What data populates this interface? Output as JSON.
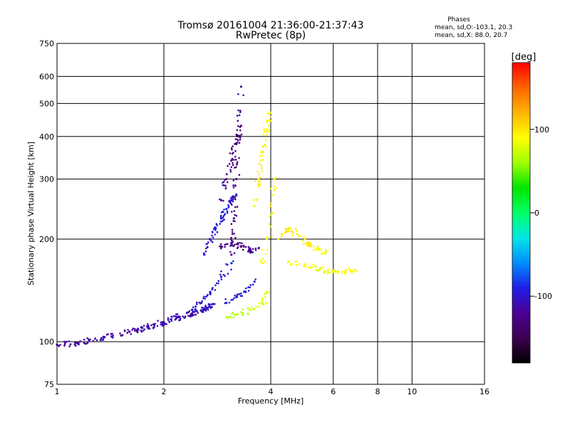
{
  "chart_data": {
    "type": "scatter",
    "title": "Tromsø 20161004 21:36:00-21:37:43",
    "subtitle": "RwPretec (8p)",
    "xlabel": "Frequency [MHz]",
    "ylabel": "Stationary phase Virtual Height [km]",
    "x_scale": "log",
    "y_scale": "log",
    "xlim": [
      1,
      16
    ],
    "ylim": [
      75,
      750
    ],
    "x_ticks": [
      1,
      2,
      4,
      6,
      8,
      10,
      16
    ],
    "x_tick_labels": [
      "1",
      "2",
      "4",
      "6",
      "8",
      "10",
      "16"
    ],
    "y_ticks": [
      75,
      100,
      200,
      300,
      400,
      500,
      600,
      750
    ],
    "y_tick_labels": [
      "75",
      "100",
      "200",
      "300",
      "400",
      "500",
      "600",
      "750"
    ],
    "grid": true,
    "phases_legend": {
      "title": "Phases",
      "line_o": "mean, sd,O:-103.1, 20.3",
      "line_x": "mean, sd,X:  88.0, 20.7"
    },
    "colorbar": {
      "label": "[deg]",
      "range": [
        -180,
        180
      ],
      "tick_values": [
        100,
        0,
        -100
      ],
      "tick_labels": [
        "100",
        "0",
        "-100"
      ],
      "colors": [
        "#000000",
        "#3c0050",
        "#4b0096",
        "#1e1ee6",
        "#008cff",
        "#00e6e6",
        "#00ff64",
        "#00e600",
        "#a0ff00",
        "#ffff00",
        "#ffb400",
        "#ff6400",
        "#ff0000"
      ]
    },
    "series": [
      {
        "segments": [
          {
            "f": [
              1.0,
              1.15,
              1.35,
              1.6,
              1.8,
              2.0,
              2.2,
              2.4,
              2.6,
              2.75
            ],
            "h": [
              98,
              99,
              103,
              107,
              110,
              114,
              118,
              121,
              125,
              129
            ],
            "phase": [
              -115,
              -118,
              -112,
              -120,
              -108,
              -110,
              -106,
              -112,
              -104,
              -100
            ],
            "count": 24
          },
          {
            "f": [
              2.4,
              2.55,
              2.7,
              2.9,
              3.1
            ],
            "h": [
              124,
              130,
              140,
              155,
              170
            ],
            "phase": [
              -95,
              -100,
              -92,
              -98,
              -90
            ],
            "count": 10
          },
          {
            "f": [
              2.6,
              2.7,
              2.8,
              2.9,
              3.0,
              3.1,
              3.2
            ],
            "h": [
              180,
              200,
              215,
              230,
              245,
              260,
              270
            ],
            "phase": [
              -95,
              -100,
              -92,
              -98,
              -90,
              -105,
              -95
            ],
            "count": 10
          },
          {
            "f": [
              2.9,
              3.0,
              3.1,
              3.2,
              3.3
            ],
            "h": [
              260,
              300,
              340,
              380,
              430
            ],
            "phase": [
              -120,
              -130,
              -125,
              -128,
              -122
            ],
            "count": 10
          },
          {
            "f": [
              3.1,
              3.15,
              3.2,
              3.25,
              3.3
            ],
            "h": [
              180,
              230,
              300,
              400,
              560
            ],
            "phase": [
              -125,
              -130,
              -128,
              -135,
              -120
            ],
            "count": 14
          },
          {
            "f": [
              2.9,
              3.1,
              3.3,
              3.5,
              3.7
            ],
            "h": [
              190,
              195,
              190,
              185,
              188
            ],
            "phase": [
              -128,
              -125,
              -130,
              -122,
              -126
            ],
            "count": 12
          },
          {
            "f": [
              3.0,
              3.2,
              3.4,
              3.6
            ],
            "h": [
              130,
              135,
              140,
              150
            ],
            "phase": [
              -95,
              -100,
              -90,
              -98
            ],
            "count": 8
          }
        ]
      },
      {
        "segments": [
          {
            "f": [
              3.0,
              3.2,
              3.5,
              3.8,
              3.9
            ],
            "h": [
              118,
              120,
              124,
              130,
              140
            ],
            "phase": [
              70,
              65,
              75,
              80,
              78
            ],
            "count": 10
          },
          {
            "f": [
              3.6,
              3.7,
              3.8,
              3.9,
              4.0
            ],
            "h": [
              250,
              300,
              360,
              420,
              470
            ],
            "phase": [
              85,
              95,
              100,
              90,
              92
            ],
            "count": 12
          },
          {
            "f": [
              3.8,
              3.9,
              4.0,
              4.1
            ],
            "h": [
              170,
              200,
              250,
              300
            ],
            "phase": [
              90,
              85,
              95,
              88
            ],
            "count": 8
          },
          {
            "f": [
              4.2,
              4.5,
              4.8,
              5.1,
              5.4,
              5.7
            ],
            "h": [
              200,
              215,
              205,
              195,
              188,
              182
            ],
            "phase": [
              95,
              100,
              90,
              98,
              92,
              88
            ],
            "count": 12
          },
          {
            "f": [
              4.5,
              5.0,
              5.5,
              6.0,
              6.5,
              6.9
            ],
            "h": [
              172,
              168,
              163,
              160,
              160,
              162
            ],
            "phase": [
              85,
              90,
              80,
              88,
              92,
              84
            ],
            "count": 12
          }
        ]
      }
    ]
  }
}
